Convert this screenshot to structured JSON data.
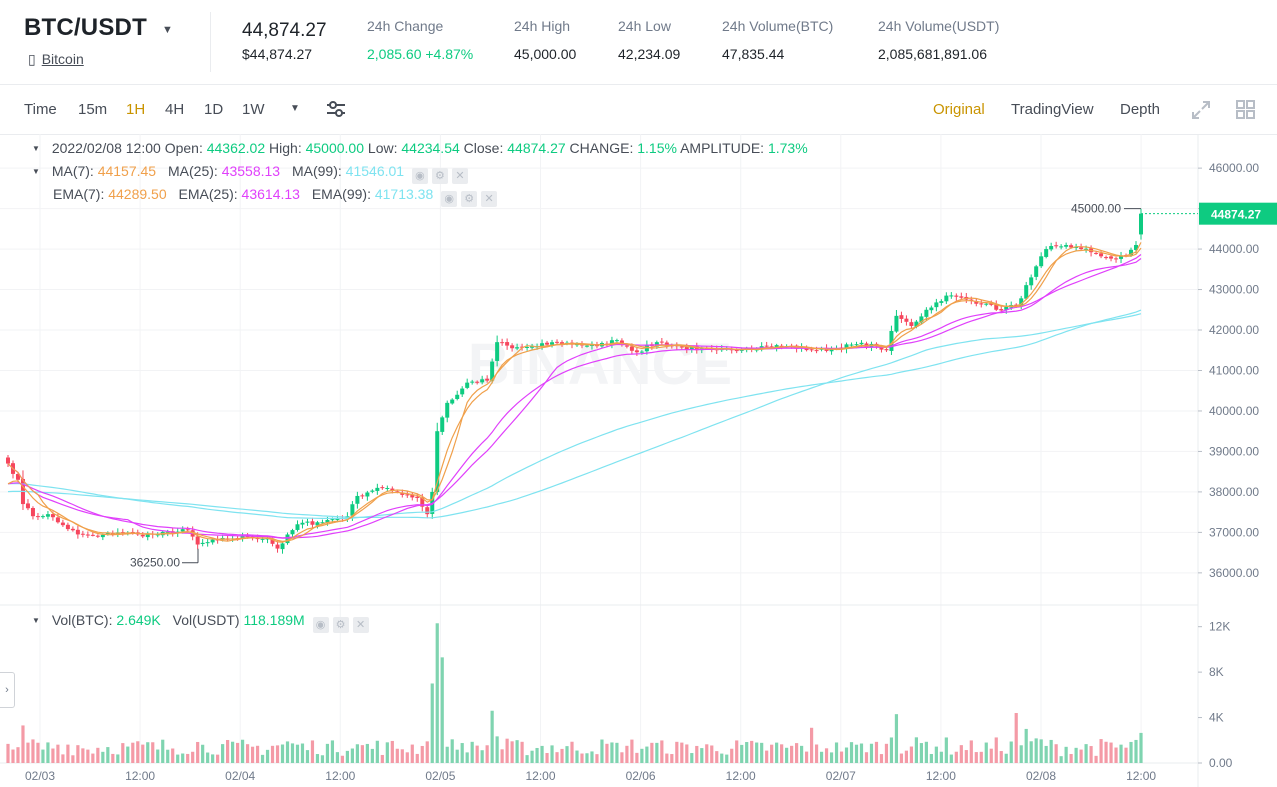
{
  "header": {
    "pair": "BTC/USDT",
    "coin_name": "Bitcoin",
    "last_price": "44,874.27",
    "last_price_usd": "$44,874.27",
    "stats": [
      {
        "label": "24h Change",
        "value": "2,085.60 +4.87%",
        "up": true
      },
      {
        "label": "24h High",
        "value": "45,000.00"
      },
      {
        "label": "24h Low",
        "value": "42,234.09"
      },
      {
        "label": "24h Volume(BTC)",
        "value": "47,835.44"
      },
      {
        "label": "24h Volume(USDT)",
        "value": "2,085,681,891.06"
      }
    ]
  },
  "toolbar": {
    "intervals": [
      "Time",
      "15m",
      "1H",
      "4H",
      "1D",
      "1W"
    ],
    "active_interval": "1H",
    "views": [
      "Original",
      "TradingView",
      "Depth"
    ],
    "active_view": "Original"
  },
  "legend": {
    "date": "2022/02/08 12:00",
    "open_label": "Open:",
    "open": "44362.02",
    "high_label": "High:",
    "high": "45000.00",
    "low_label": "Low:",
    "low": "44234.54",
    "close_label": "Close:",
    "close": "44874.27",
    "change_label": "CHANGE:",
    "change": "1.15%",
    "amplitude_label": "AMPLITUDE:",
    "amplitude": "1.73%",
    "ma": [
      {
        "label": "MA(7):",
        "value": "44157.45",
        "color": "#f0a04b"
      },
      {
        "label": "MA(25):",
        "value": "43558.13",
        "color": "#e040fb"
      },
      {
        "label": "MA(99):",
        "value": "41546.01",
        "color": "#7fe3f0"
      }
    ],
    "ema": [
      {
        "label": "EMA(7):",
        "value": "44289.50",
        "color": "#f0a04b"
      },
      {
        "label": "EMA(25):",
        "value": "43614.13",
        "color": "#e040fb"
      },
      {
        "label": "EMA(99):",
        "value": "41713.38",
        "color": "#7fe3f0"
      }
    ],
    "vol": [
      {
        "label": "Vol(BTC):",
        "value": "2.649K"
      },
      {
        "label": "Vol(USDT)",
        "value": "118.189M"
      }
    ]
  },
  "chart_data": {
    "type": "candlestick",
    "price_axis_ticks": [
      "46000.00",
      "45000.00",
      "44000.00",
      "43000.00",
      "42000.00",
      "41000.00",
      "40000.00",
      "39000.00",
      "38000.00",
      "37000.00",
      "36000.00"
    ],
    "price_range": [
      35700,
      46250
    ],
    "volume_axis_ticks": [
      "12K",
      "8K",
      "4K",
      "0.00"
    ],
    "volume_range": [
      0,
      12500
    ],
    "time_axis_labels": [
      "02/03",
      "12:00",
      "02/04",
      "12:00",
      "02/05",
      "12:00",
      "02/06",
      "12:00",
      "02/07",
      "12:00",
      "02/08",
      "12:00"
    ],
    "last_price_tag": "44874.27",
    "high_marker": "45000.00",
    "low_marker": "36250.00",
    "watermark": "BINANCE",
    "colors": {
      "up": "#0ecb81",
      "down": "#f6465d",
      "up_vol": "#7fd4b0",
      "down_vol": "#f49aa6",
      "ma7": "#f0a04b",
      "ma25": "#e040fb",
      "ma99": "#7fe3f0"
    },
    "close_anchors": [
      [
        0,
        38700
      ],
      [
        2,
        38300
      ],
      [
        3,
        37700
      ],
      [
        5,
        37400
      ],
      [
        8,
        37450
      ],
      [
        10,
        37250
      ],
      [
        14,
        36950
      ],
      [
        18,
        36900
      ],
      [
        22,
        37000
      ],
      [
        26,
        36950
      ],
      [
        30,
        36950
      ],
      [
        36,
        37050
      ],
      [
        38,
        36700
      ],
      [
        42,
        36800
      ],
      [
        45,
        36850
      ],
      [
        48,
        36900
      ],
      [
        52,
        36850
      ],
      [
        54,
        36600
      ],
      [
        58,
        37200
      ],
      [
        62,
        37250
      ],
      [
        68,
        37400
      ],
      [
        70,
        37900
      ],
      [
        74,
        38100
      ],
      [
        78,
        38000
      ],
      [
        82,
        37850
      ],
      [
        84,
        37450
      ],
      [
        85,
        38000
      ],
      [
        86,
        39500
      ],
      [
        88,
        40200
      ],
      [
        90,
        40400
      ],
      [
        92,
        40700
      ],
      [
        96,
        40750
      ],
      [
        98,
        41700
      ],
      [
        101,
        41550
      ],
      [
        106,
        41600
      ],
      [
        110,
        41700
      ],
      [
        114,
        41650
      ],
      [
        118,
        41600
      ],
      [
        122,
        41750
      ],
      [
        126,
        41450
      ],
      [
        130,
        41700
      ],
      [
        134,
        41600
      ],
      [
        138,
        41500
      ],
      [
        142,
        41500
      ],
      [
        148,
        41550
      ],
      [
        152,
        41600
      ],
      [
        156,
        41600
      ],
      [
        162,
        41500
      ],
      [
        166,
        41550
      ],
      [
        170,
        41650
      ],
      [
        174,
        41600
      ],
      [
        176,
        41500
      ],
      [
        178,
        42350
      ],
      [
        181,
        42100
      ],
      [
        184,
        42500
      ],
      [
        188,
        42850
      ],
      [
        192,
        42750
      ],
      [
        196,
        42650
      ],
      [
        198,
        42500
      ],
      [
        202,
        42600
      ],
      [
        205,
        43300
      ],
      [
        208,
        44000
      ],
      [
        212,
        44100
      ],
      [
        215,
        44000
      ],
      [
        218,
        43900
      ],
      [
        220,
        43800
      ],
      [
        222,
        43750
      ],
      [
        224,
        43850
      ],
      [
        226,
        44100
      ],
      [
        227,
        44874
      ]
    ],
    "volume_spikes": [
      [
        85,
        7000
      ],
      [
        86,
        12300
      ],
      [
        87,
        9300
      ],
      [
        97,
        4600
      ],
      [
        161,
        3100
      ],
      [
        178,
        4300
      ],
      [
        202,
        4400
      ],
      [
        204,
        3000
      ]
    ],
    "candle_count": 228
  }
}
